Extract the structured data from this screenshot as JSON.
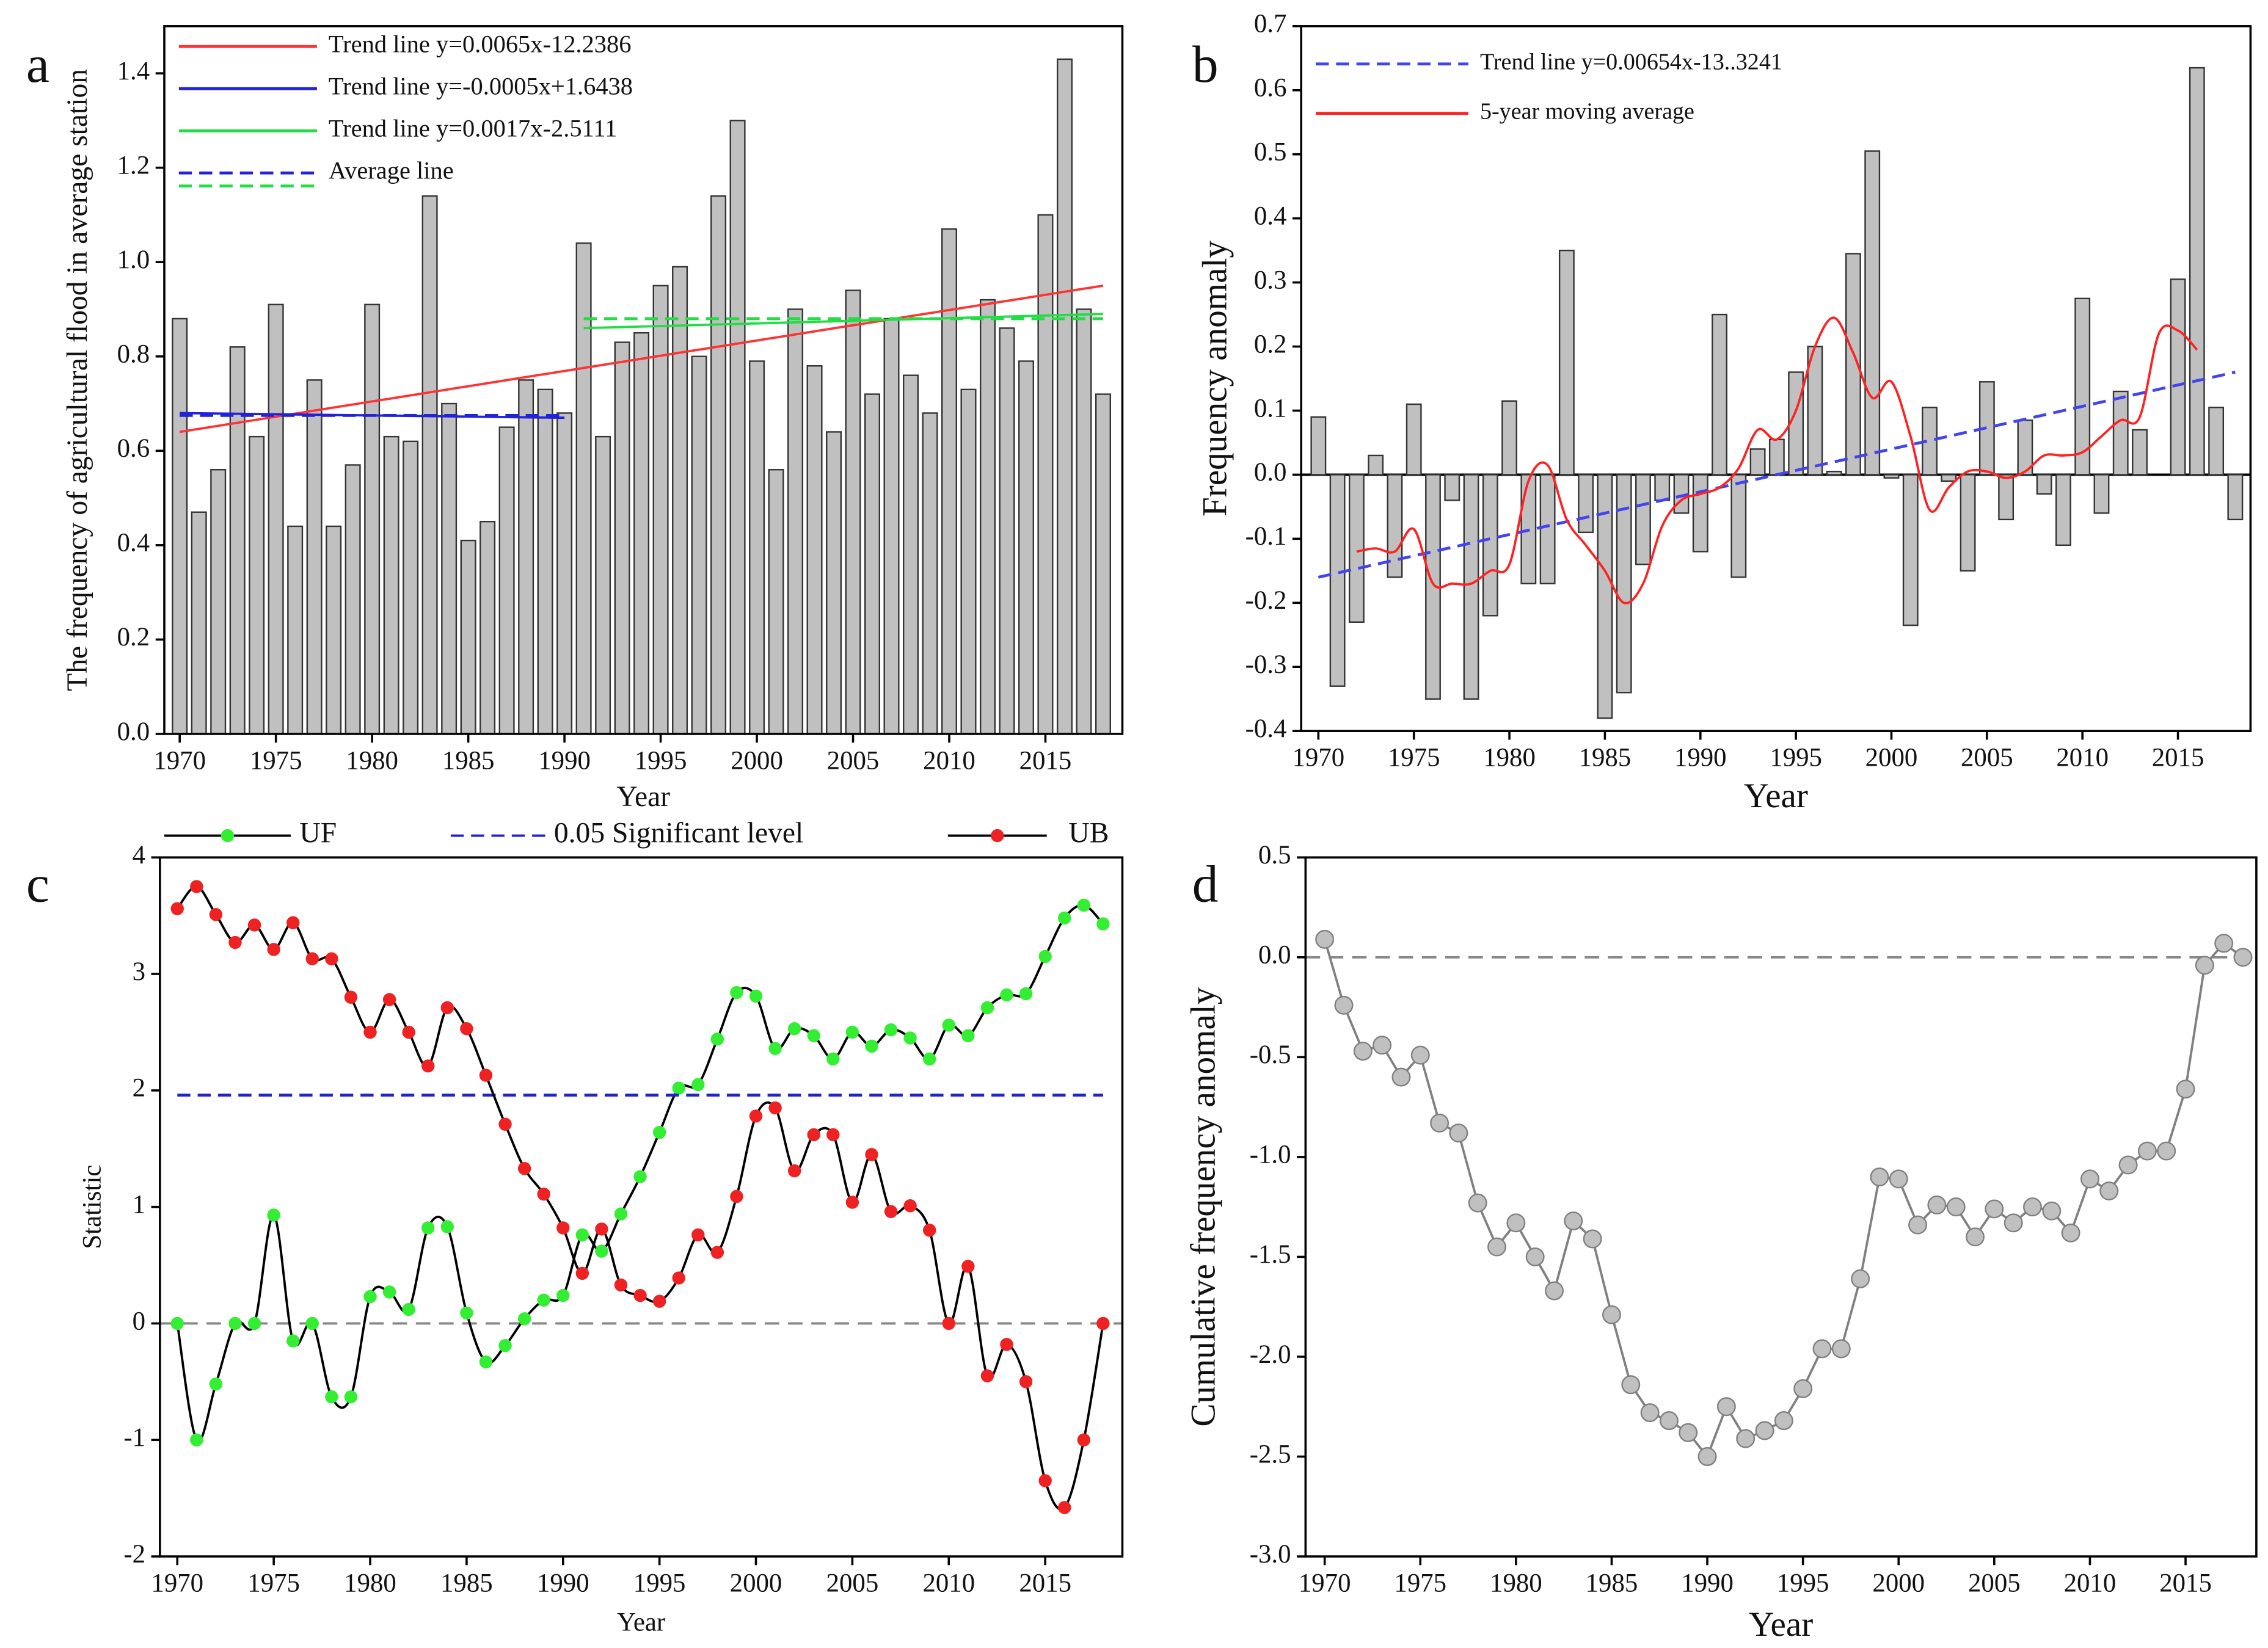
{
  "chart_data": [
    {
      "type": "bar",
      "panel_label": "a",
      "ylabel": "The frequency of agricultural flood in average station",
      "xlabel": "Year",
      "xlim": [
        1969.2,
        2019
      ],
      "ylim": [
        0,
        1.5
      ],
      "xticks": [
        1970,
        1975,
        1980,
        1985,
        1990,
        1995,
        2000,
        2005,
        2010,
        2015
      ],
      "yticks": [
        {
          "value": 0,
          "label": "0.0"
        },
        0.2,
        0.4,
        0.6,
        0.8,
        {
          "value": 1,
          "label": "1.0"
        },
        1.2,
        1.4
      ],
      "legend": "upper left",
      "color": "#c0c0c0",
      "x": [
        1970,
        1971,
        1972,
        1973,
        1974,
        1975,
        1976,
        1977,
        1978,
        1979,
        1980,
        1981,
        1982,
        1983,
        1984,
        1985,
        1986,
        1987,
        1988,
        1989,
        1990,
        1991,
        1992,
        1993,
        1994,
        1995,
        1996,
        1997,
        1998,
        1999,
        2000,
        2001,
        2002,
        2003,
        2004,
        2005,
        2006,
        2007,
        2008,
        2009,
        2010,
        2011,
        2012,
        2013,
        2014,
        2015,
        2016,
        2017,
        2018
      ],
      "values": [
        0.88,
        0.47,
        0.56,
        0.82,
        0.63,
        0.91,
        0.44,
        0.75,
        0.44,
        0.57,
        0.91,
        0.63,
        0.62,
        1.14,
        0.7,
        0.41,
        0.45,
        0.65,
        0.75,
        0.73,
        0.68,
        1.04,
        0.63,
        0.83,
        0.85,
        0.95,
        0.99,
        0.8,
        1.14,
        1.3,
        0.79,
        0.56,
        0.9,
        0.78,
        0.64,
        0.94,
        0.72,
        0.88,
        0.76,
        0.68,
        1.07,
        0.73,
        0.92,
        0.86,
        0.79,
        1.1,
        1.43,
        0.9,
        0.72
      ],
      "series": [
        {
          "name": "Trend line y=0.0065x-12.2386",
          "color": "#ff3333",
          "x": [
            1970,
            2018
          ],
          "values": [
            0.64,
            0.95
          ]
        },
        {
          "name": "Trend line y=-0.0005x+1.6438",
          "color": "#2222dd",
          "x": [
            1970,
            1990
          ],
          "values": [
            0.68,
            0.67
          ]
        },
        {
          "name": "Trend line y=0.0017x-2.5111",
          "color": "#22dd44",
          "x": [
            1991,
            2018
          ],
          "values": [
            0.86,
            0.89
          ]
        },
        {
          "name": "Average line",
          "color": "#2222dd",
          "dash": true,
          "x": [
            1970,
            1990
          ],
          "values": [
            0.675,
            0.675
          ]
        },
        {
          "color": "#22dd44",
          "dash": true,
          "x": [
            1991,
            2018
          ],
          "values": [
            0.88,
            0.88
          ]
        }
      ]
    },
    {
      "type": "bar",
      "panel_label": "b",
      "ylabel": "Frequency anomaly",
      "xlabel": "Year",
      "xlim": [
        1969.1,
        2018.8
      ],
      "ylim": [
        -0.4,
        0.7
      ],
      "xticks": [
        1970,
        1975,
        1980,
        1985,
        1990,
        1995,
        2000,
        2005,
        2010,
        2015
      ],
      "yticks": [
        -0.4,
        -0.3,
        -0.2,
        -0.1,
        {
          "value": 0,
          "label": "0.0"
        },
        0.1,
        0.2,
        0.3,
        0.4,
        0.5,
        0.6,
        0.7
      ],
      "legend": "upper left",
      "color": "#c0c0c0",
      "zero_line": "solid",
      "x": [
        1970,
        1971,
        1972,
        1973,
        1974,
        1975,
        1976,
        1977,
        1978,
        1979,
        1980,
        1981,
        1982,
        1983,
        1984,
        1985,
        1986,
        1987,
        1988,
        1989,
        1990,
        1991,
        1992,
        1993,
        1994,
        1995,
        1996,
        1997,
        1998,
        1999,
        2000,
        2001,
        2002,
        2003,
        2004,
        2005,
        2006,
        2007,
        2008,
        2009,
        2010,
        2011,
        2012,
        2013,
        2014,
        2015,
        2016,
        2017,
        2018
      ],
      "values": [
        0.09,
        -0.33,
        -0.23,
        0.03,
        -0.16,
        0.11,
        -0.35,
        -0.04,
        -0.35,
        -0.22,
        0.115,
        -0.17,
        -0.17,
        0.35,
        -0.09,
        -0.38,
        -0.34,
        -0.14,
        -0.04,
        -0.06,
        -0.12,
        0.25,
        -0.16,
        0.04,
        0.055,
        0.16,
        0.2,
        0.005,
        0.345,
        0.505,
        -0.005,
        -0.235,
        0.105,
        -0.01,
        -0.15,
        0.145,
        -0.07,
        0.085,
        -0.03,
        -0.11,
        0.275,
        -0.06,
        0.13,
        0.07,
        0,
        0.305,
        0.635,
        0.105,
        -0.07
      ],
      "series": [
        {
          "name": "Trend line  y=0.00654x-13..3241",
          "color": "#4444ee",
          "dash": true,
          "x": [
            1970,
            2018
          ],
          "values": [
            -0.16,
            0.16
          ]
        },
        {
          "name": "5-year moving average",
          "color": "#ff2222",
          "smooth": true,
          "x": [
            1972,
            1973,
            1974,
            1975,
            1976,
            1977,
            1978,
            1979,
            1980,
            1981,
            1982,
            1983,
            1984,
            1985,
            1986,
            1987,
            1988,
            1989,
            1990,
            1991,
            1992,
            1993,
            1994,
            1995,
            1996,
            1997,
            1998,
            1999,
            2000,
            2001,
            2002,
            2003,
            2004,
            2005,
            2006,
            2007,
            2008,
            2009,
            2010,
            2011,
            2012,
            2013,
            2014,
            2015,
            2016
          ],
          "values": [
            -0.12,
            -0.115,
            -0.12,
            -0.085,
            -0.17,
            -0.17,
            -0.17,
            -0.15,
            -0.14,
            -0.01,
            0.015,
            -0.07,
            -0.11,
            -0.15,
            -0.2,
            -0.17,
            -0.08,
            -0.04,
            -0.03,
            -0.02,
            0.01,
            0.07,
            0.055,
            0.1,
            0.2,
            0.245,
            0.19,
            0.12,
            0.145,
            0.06,
            -0.055,
            -0.02,
            0.005,
            0.005,
            -0.005,
            0.005,
            0.03,
            0.03,
            0.035,
            0.06,
            0.085,
            0.09,
            0.22,
            0.225,
            0.195
          ]
        }
      ]
    },
    {
      "type": "line",
      "panel_label": "c",
      "ylabel": "Statistic",
      "xlabel": "Year",
      "xlim": [
        1969.1,
        2019
      ],
      "ylim": [
        -2,
        4
      ],
      "xticks": [
        1970,
        1975,
        1980,
        1985,
        1990,
        1995,
        2000,
        2005,
        2010,
        2015
      ],
      "yticks": [
        -2,
        -1,
        0,
        1,
        2,
        3,
        4
      ],
      "legend": "top",
      "zero_line": "dashed",
      "series": [
        {
          "name": "UF",
          "color": "#33ee33",
          "line_color": "#000000",
          "marker": true,
          "smooth": true,
          "x": [
            1970,
            1971,
            1972,
            1973,
            1974,
            1975,
            1976,
            1977,
            1978,
            1979,
            1980,
            1981,
            1982,
            1983,
            1984,
            1985,
            1986,
            1987,
            1988,
            1989,
            1990,
            1991,
            1992,
            1993,
            1994,
            1995,
            1996,
            1997,
            1998,
            1999,
            2000,
            2001,
            2002,
            2003,
            2004,
            2005,
            2006,
            2007,
            2008,
            2009,
            2010,
            2011,
            2012,
            2013,
            2014,
            2015,
            2016,
            2017,
            2018
          ],
          "values": [
            0,
            -1.0,
            -0.52,
            0.0,
            0.0,
            0.93,
            -0.15,
            0.0,
            -0.63,
            -0.63,
            0.23,
            0.27,
            0.12,
            0.82,
            0.83,
            0.09,
            -0.33,
            -0.19,
            0.04,
            0.2,
            0.24,
            0.76,
            0.62,
            0.94,
            1.26,
            1.64,
            2.02,
            2.05,
            2.44,
            2.84,
            2.81,
            2.36,
            2.53,
            2.47,
            2.27,
            2.5,
            2.38,
            2.52,
            2.45,
            2.27,
            2.56,
            2.47,
            2.71,
            2.82,
            2.83,
            3.15,
            3.48,
            3.59,
            3.43
          ]
        },
        {
          "name": "0.05 Significant level",
          "color": "#2222cc",
          "dash": true,
          "x": [
            1970,
            2018
          ],
          "values": [
            1.96,
            1.96
          ]
        },
        {
          "name": "UB",
          "color": "#ee2222",
          "line_color": "#000000",
          "marker": true,
          "smooth": true,
          "x": [
            1970,
            1971,
            1972,
            1973,
            1974,
            1975,
            1976,
            1977,
            1978,
            1979,
            1980,
            1981,
            1982,
            1983,
            1984,
            1985,
            1986,
            1987,
            1988,
            1989,
            1990,
            1991,
            1992,
            1993,
            1994,
            1995,
            1996,
            1997,
            1998,
            1999,
            2000,
            2001,
            2002,
            2003,
            2004,
            2005,
            2006,
            2007,
            2008,
            2009,
            2010,
            2011,
            2012,
            2013,
            2014,
            2015,
            2016,
            2017,
            2018
          ],
          "values": [
            3.56,
            3.75,
            3.51,
            3.27,
            3.42,
            3.21,
            3.44,
            3.13,
            3.13,
            2.8,
            2.5,
            2.78,
            2.5,
            2.21,
            2.71,
            2.53,
            2.13,
            1.71,
            1.33,
            1.11,
            0.82,
            0.43,
            0.81,
            0.33,
            0.24,
            0.19,
            0.39,
            0.76,
            0.61,
            1.09,
            1.78,
            1.85,
            1.31,
            1.62,
            1.62,
            1.04,
            1.45,
            0.96,
            1.01,
            0.8,
            0,
            0.49,
            -0.45,
            -0.18,
            -0.5,
            -1.35,
            -1.58,
            -1.0,
            0
          ]
        }
      ]
    },
    {
      "type": "line",
      "panel_label": "d",
      "ylabel": "Cumulative frequency anomaly",
      "xlabel": "Year",
      "xlim": [
        1969.0,
        2018.7
      ],
      "ylim": [
        -3.0,
        0.5
      ],
      "xticks": [
        1970,
        1975,
        1980,
        1985,
        1990,
        1995,
        2000,
        2005,
        2010,
        2015
      ],
      "yticks": [
        {
          "value": -3,
          "label": "-3.0"
        },
        -2.5,
        {
          "value": -2,
          "label": "-2.0"
        },
        -1.5,
        {
          "value": -1,
          "label": "-1.0"
        },
        -0.5,
        {
          "value": 0,
          "label": "0.0"
        },
        0.5
      ],
      "zero_line": "dashed",
      "series": [
        {
          "color": "#c0c0c0",
          "line_color": "#808080",
          "marker": true,
          "x": [
            1970,
            1971,
            1972,
            1973,
            1974,
            1975,
            1976,
            1977,
            1978,
            1979,
            1980,
            1981,
            1982,
            1983,
            1984,
            1985,
            1986,
            1987,
            1988,
            1989,
            1990,
            1991,
            1992,
            1993,
            1994,
            1995,
            1996,
            1997,
            1998,
            1999,
            2000,
            2001,
            2002,
            2003,
            2004,
            2005,
            2006,
            2007,
            2008,
            2009,
            2010,
            2011,
            2012,
            2013,
            2014,
            2015,
            2016,
            2017,
            2018
          ],
          "values": [
            0.09,
            -0.24,
            -0.47,
            -0.44,
            -0.6,
            -0.49,
            -0.83,
            -0.88,
            -1.23,
            -1.45,
            -1.33,
            -1.5,
            -1.67,
            -1.32,
            -1.41,
            -1.79,
            -2.14,
            -2.28,
            -2.32,
            -2.38,
            -2.5,
            -2.25,
            -2.41,
            -2.37,
            -2.32,
            -2.16,
            -1.96,
            -1.96,
            -1.61,
            -1.1,
            -1.11,
            -1.34,
            -1.24,
            -1.25,
            -1.4,
            -1.26,
            -1.33,
            -1.25,
            -1.27,
            -1.38,
            -1.11,
            -1.17,
            -1.04,
            -0.97,
            -0.97,
            -0.66,
            -0.04,
            0.07,
            0
          ]
        }
      ]
    }
  ]
}
